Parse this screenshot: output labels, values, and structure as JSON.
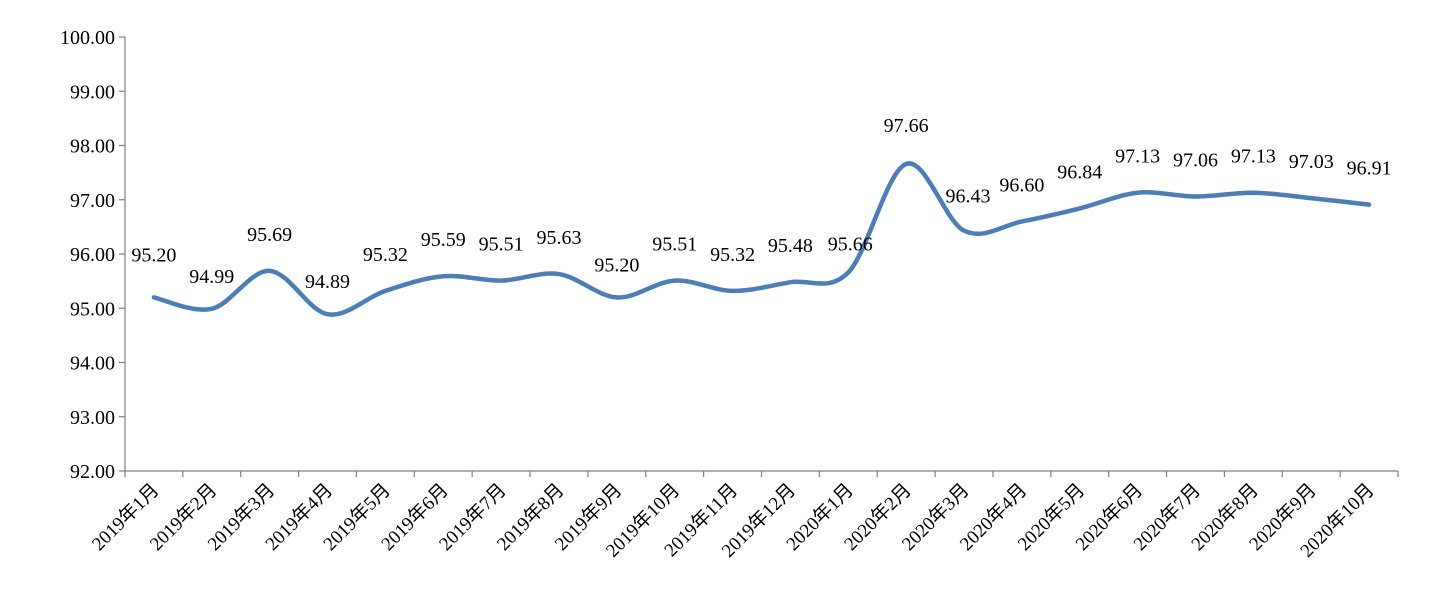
{
  "chart_data": {
    "type": "line",
    "title": "",
    "xlabel": "",
    "ylabel": "",
    "ylim": [
      92,
      100
    ],
    "yticks": [
      "92.00",
      "93.00",
      "94.00",
      "95.00",
      "96.00",
      "97.00",
      "98.00",
      "99.00",
      "100.00"
    ],
    "grid": false,
    "legend": "none",
    "line_color": "#4a7ebb",
    "categories": [
      "2019年1月",
      "2019年2月",
      "2019年3月",
      "2019年4月",
      "2019年5月",
      "2019年6月",
      "2019年7月",
      "2019年8月",
      "2019年9月",
      "2019年10月",
      "2019年11月",
      "2019年12月",
      "2020年1月",
      "2020年2月",
      "2020年3月",
      "2020年4月",
      "2020年5月",
      "2020年6月",
      "2020年7月",
      "2020年8月",
      "2020年9月",
      "2020年10月"
    ],
    "values": [
      95.2,
      94.99,
      95.69,
      94.89,
      95.32,
      95.59,
      95.51,
      95.63,
      95.2,
      95.51,
      95.32,
      95.48,
      95.66,
      97.66,
      96.43,
      96.6,
      96.84,
      97.13,
      97.06,
      97.13,
      97.03,
      96.91
    ],
    "data_labels": [
      "95.20",
      "94.99",
      "95.69",
      "94.89",
      "95.32",
      "95.59",
      "95.51",
      "95.63",
      "95.20",
      "95.51",
      "95.32",
      "95.48",
      "95.66",
      "97.66",
      "96.43",
      "96.60",
      "96.84",
      "97.13",
      "97.06",
      "97.13",
      "97.03",
      "96.91"
    ]
  }
}
